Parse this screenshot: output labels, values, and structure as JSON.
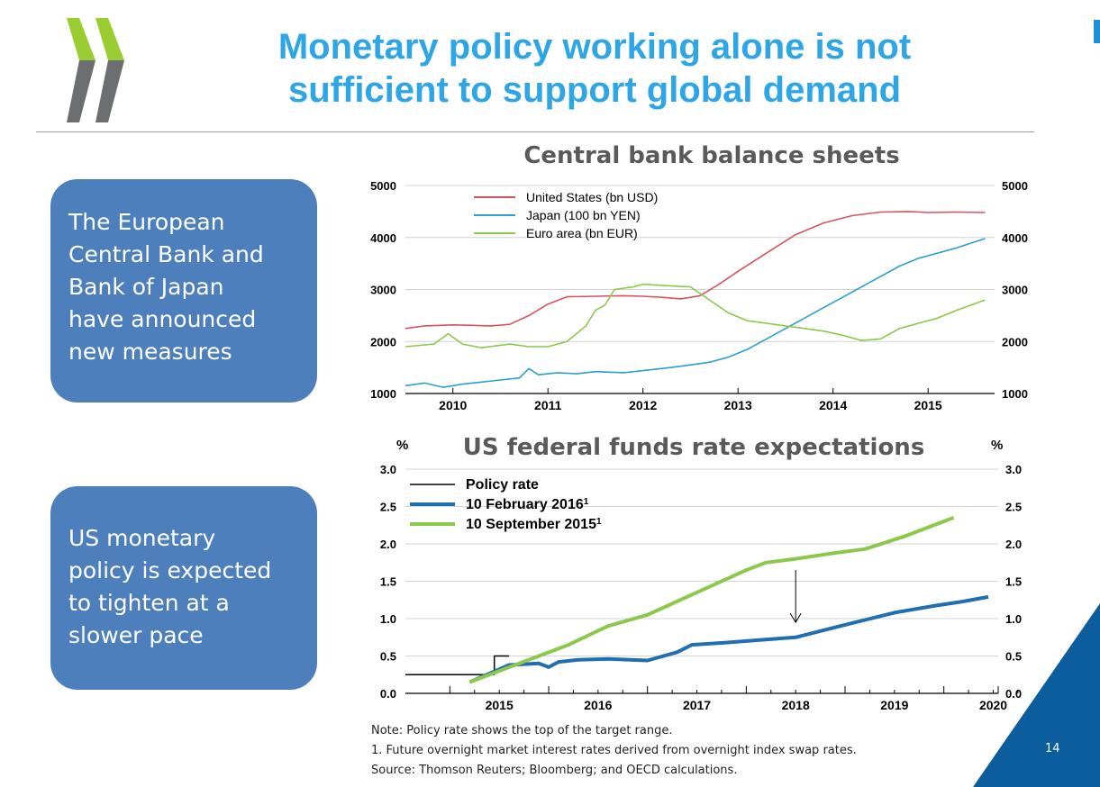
{
  "slide": {
    "title_line1": "Monetary policy working alone is not",
    "title_line2": "sufficient to support global demand",
    "box1_lines": [
      "The European",
      "Central Bank and",
      "Bank of Japan",
      "have announced",
      "new measures"
    ],
    "box2_lines": [
      "US monetary",
      "policy is expected",
      "to tighten at a",
      "slower pace"
    ],
    "notes": [
      "Note: Policy rate shows the top of the target range.",
      "1. Future overnight market interest rates derived from overnight index swap rates.",
      "Source: Thomson Reuters; Bloomberg; and OECD calculations."
    ],
    "page_number": "14",
    "colors": {
      "title": "#2ea6e6",
      "box": "#4e7fbd",
      "logo_green": "#9acd32",
      "logo_grey": "#6d6e71",
      "corner": "#0b5d9e"
    }
  },
  "chart_data": [
    {
      "type": "line",
      "title": "Central bank balance sheets",
      "x_ticks": [
        "2010",
        "2011",
        "2012",
        "2013",
        "2014",
        "2015"
      ],
      "xlim": [
        2009.5,
        2015.7
      ],
      "ylim": [
        1000,
        5000
      ],
      "y_ticks": [
        "1000",
        "2000",
        "3000",
        "4000",
        "5000"
      ],
      "grid": true,
      "legend": "top-left",
      "series": [
        {
          "name": "United States (bn USD)",
          "color": "#d9535f",
          "points": [
            [
              2009.5,
              2250
            ],
            [
              2009.7,
              2300
            ],
            [
              2010.0,
              2320
            ],
            [
              2010.2,
              2310
            ],
            [
              2010.4,
              2300
            ],
            [
              2010.6,
              2330
            ],
            [
              2010.8,
              2500
            ],
            [
              2011.0,
              2720
            ],
            [
              2011.2,
              2860
            ],
            [
              2011.5,
              2870
            ],
            [
              2011.8,
              2880
            ],
            [
              2012.0,
              2870
            ],
            [
              2012.2,
              2850
            ],
            [
              2012.4,
              2820
            ],
            [
              2012.6,
              2880
            ],
            [
              2012.8,
              3100
            ],
            [
              2013.0,
              3350
            ],
            [
              2013.3,
              3700
            ],
            [
              2013.6,
              4050
            ],
            [
              2013.9,
              4280
            ],
            [
              2014.2,
              4420
            ],
            [
              2014.5,
              4490
            ],
            [
              2014.8,
              4500
            ],
            [
              2015.0,
              4480
            ],
            [
              2015.3,
              4490
            ],
            [
              2015.6,
              4480
            ]
          ]
        },
        {
          "name": "Japan (100 bn YEN)",
          "color": "#2a9fd0",
          "points": [
            [
              2009.5,
              1150
            ],
            [
              2009.7,
              1200
            ],
            [
              2009.9,
              1120
            ],
            [
              2010.1,
              1180
            ],
            [
              2010.3,
              1220
            ],
            [
              2010.5,
              1260
            ],
            [
              2010.7,
              1300
            ],
            [
              2010.8,
              1480
            ],
            [
              2010.9,
              1360
            ],
            [
              2011.1,
              1400
            ],
            [
              2011.3,
              1380
            ],
            [
              2011.5,
              1420
            ],
            [
              2011.8,
              1400
            ],
            [
              2012.0,
              1440
            ],
            [
              2012.3,
              1500
            ],
            [
              2012.5,
              1550
            ],
            [
              2012.7,
              1600
            ],
            [
              2012.9,
              1700
            ],
            [
              2013.1,
              1850
            ],
            [
              2013.3,
              2050
            ],
            [
              2013.5,
              2250
            ],
            [
              2013.7,
              2450
            ],
            [
              2013.9,
              2650
            ],
            [
              2014.1,
              2850
            ],
            [
              2014.3,
              3050
            ],
            [
              2014.5,
              3250
            ],
            [
              2014.7,
              3450
            ],
            [
              2014.9,
              3600
            ],
            [
              2015.1,
              3700
            ],
            [
              2015.3,
              3800
            ],
            [
              2015.6,
              3980
            ]
          ]
        },
        {
          "name": "Euro area (bn EUR)",
          "color": "#8cc84b",
          "points": [
            [
              2009.5,
              1900
            ],
            [
              2009.8,
              1950
            ],
            [
              2009.95,
              2150
            ],
            [
              2010.1,
              1950
            ],
            [
              2010.3,
              1880
            ],
            [
              2010.6,
              1950
            ],
            [
              2010.8,
              1900
            ],
            [
              2011.0,
              1900
            ],
            [
              2011.2,
              2000
            ],
            [
              2011.4,
              2300
            ],
            [
              2011.5,
              2600
            ],
            [
              2011.6,
              2700
            ],
            [
              2011.7,
              3000
            ],
            [
              2011.9,
              3050
            ],
            [
              2012.0,
              3100
            ],
            [
              2012.2,
              3080
            ],
            [
              2012.5,
              3050
            ],
            [
              2012.7,
              2800
            ],
            [
              2012.9,
              2550
            ],
            [
              2013.1,
              2400
            ],
            [
              2013.3,
              2350
            ],
            [
              2013.5,
              2300
            ],
            [
              2013.7,
              2250
            ],
            [
              2013.9,
              2200
            ],
            [
              2014.1,
              2120
            ],
            [
              2014.3,
              2020
            ],
            [
              2014.5,
              2050
            ],
            [
              2014.7,
              2250
            ],
            [
              2014.9,
              2350
            ],
            [
              2015.1,
              2450
            ],
            [
              2015.3,
              2600
            ],
            [
              2015.6,
              2800
            ]
          ]
        }
      ]
    },
    {
      "type": "line",
      "title": "US federal funds rate expectations",
      "ylabel_left": "%",
      "ylabel_right": "%",
      "x_ticks": [
        "2015",
        "2016",
        "2017",
        "2018",
        "2019",
        "2020"
      ],
      "xlim": [
        2014.55,
        2020.55
      ],
      "ylim": [
        0.0,
        3.0
      ],
      "y_ticks": [
        "0.0",
        "0.5",
        "1.0",
        "1.5",
        "2.0",
        "2.5",
        "3.0"
      ],
      "grid": true,
      "legend": "top-left",
      "series": [
        {
          "name": "Policy rate",
          "color": "#000000",
          "width": 1.5,
          "points": [
            [
              2014.55,
              0.25
            ],
            [
              2015.45,
              0.25
            ],
            [
              2015.45,
              0.5
            ],
            [
              2015.6,
              0.5
            ]
          ]
        },
        {
          "name": "10 February 2016",
          "footnote": "1",
          "color": "#1f6fb1",
          "width": 4,
          "points": [
            [
              2015.2,
              0.15
            ],
            [
              2015.6,
              0.38
            ],
            [
              2015.9,
              0.4
            ],
            [
              2016.0,
              0.35
            ],
            [
              2016.1,
              0.42
            ],
            [
              2016.3,
              0.45
            ],
            [
              2016.6,
              0.46
            ],
            [
              2017.0,
              0.44
            ],
            [
              2017.3,
              0.55
            ],
            [
              2017.45,
              0.65
            ],
            [
              2017.8,
              0.68
            ],
            [
              2018.0,
              0.7
            ],
            [
              2018.5,
              0.75
            ],
            [
              2018.8,
              0.85
            ],
            [
              2019.1,
              0.95
            ],
            [
              2019.5,
              1.08
            ],
            [
              2019.9,
              1.17
            ],
            [
              2020.2,
              1.23
            ],
            [
              2020.45,
              1.29
            ]
          ]
        },
        {
          "name": "10 September 2015",
          "footnote": "1",
          "color": "#8cc84b",
          "width": 4,
          "points": [
            [
              2015.2,
              0.15
            ],
            [
              2015.5,
              0.3
            ],
            [
              2015.9,
              0.5
            ],
            [
              2016.2,
              0.65
            ],
            [
              2016.6,
              0.9
            ],
            [
              2017.0,
              1.05
            ],
            [
              2017.5,
              1.35
            ],
            [
              2018.0,
              1.65
            ],
            [
              2018.2,
              1.75
            ],
            [
              2018.5,
              1.8
            ],
            [
              2018.9,
              1.88
            ],
            [
              2019.2,
              1.93
            ],
            [
              2019.6,
              2.1
            ],
            [
              2020.1,
              2.35
            ]
          ]
        }
      ],
      "annotations": [
        {
          "type": "arrow",
          "x": 2018.5,
          "y_from": 1.65,
          "y_to": 0.95
        }
      ]
    }
  ]
}
